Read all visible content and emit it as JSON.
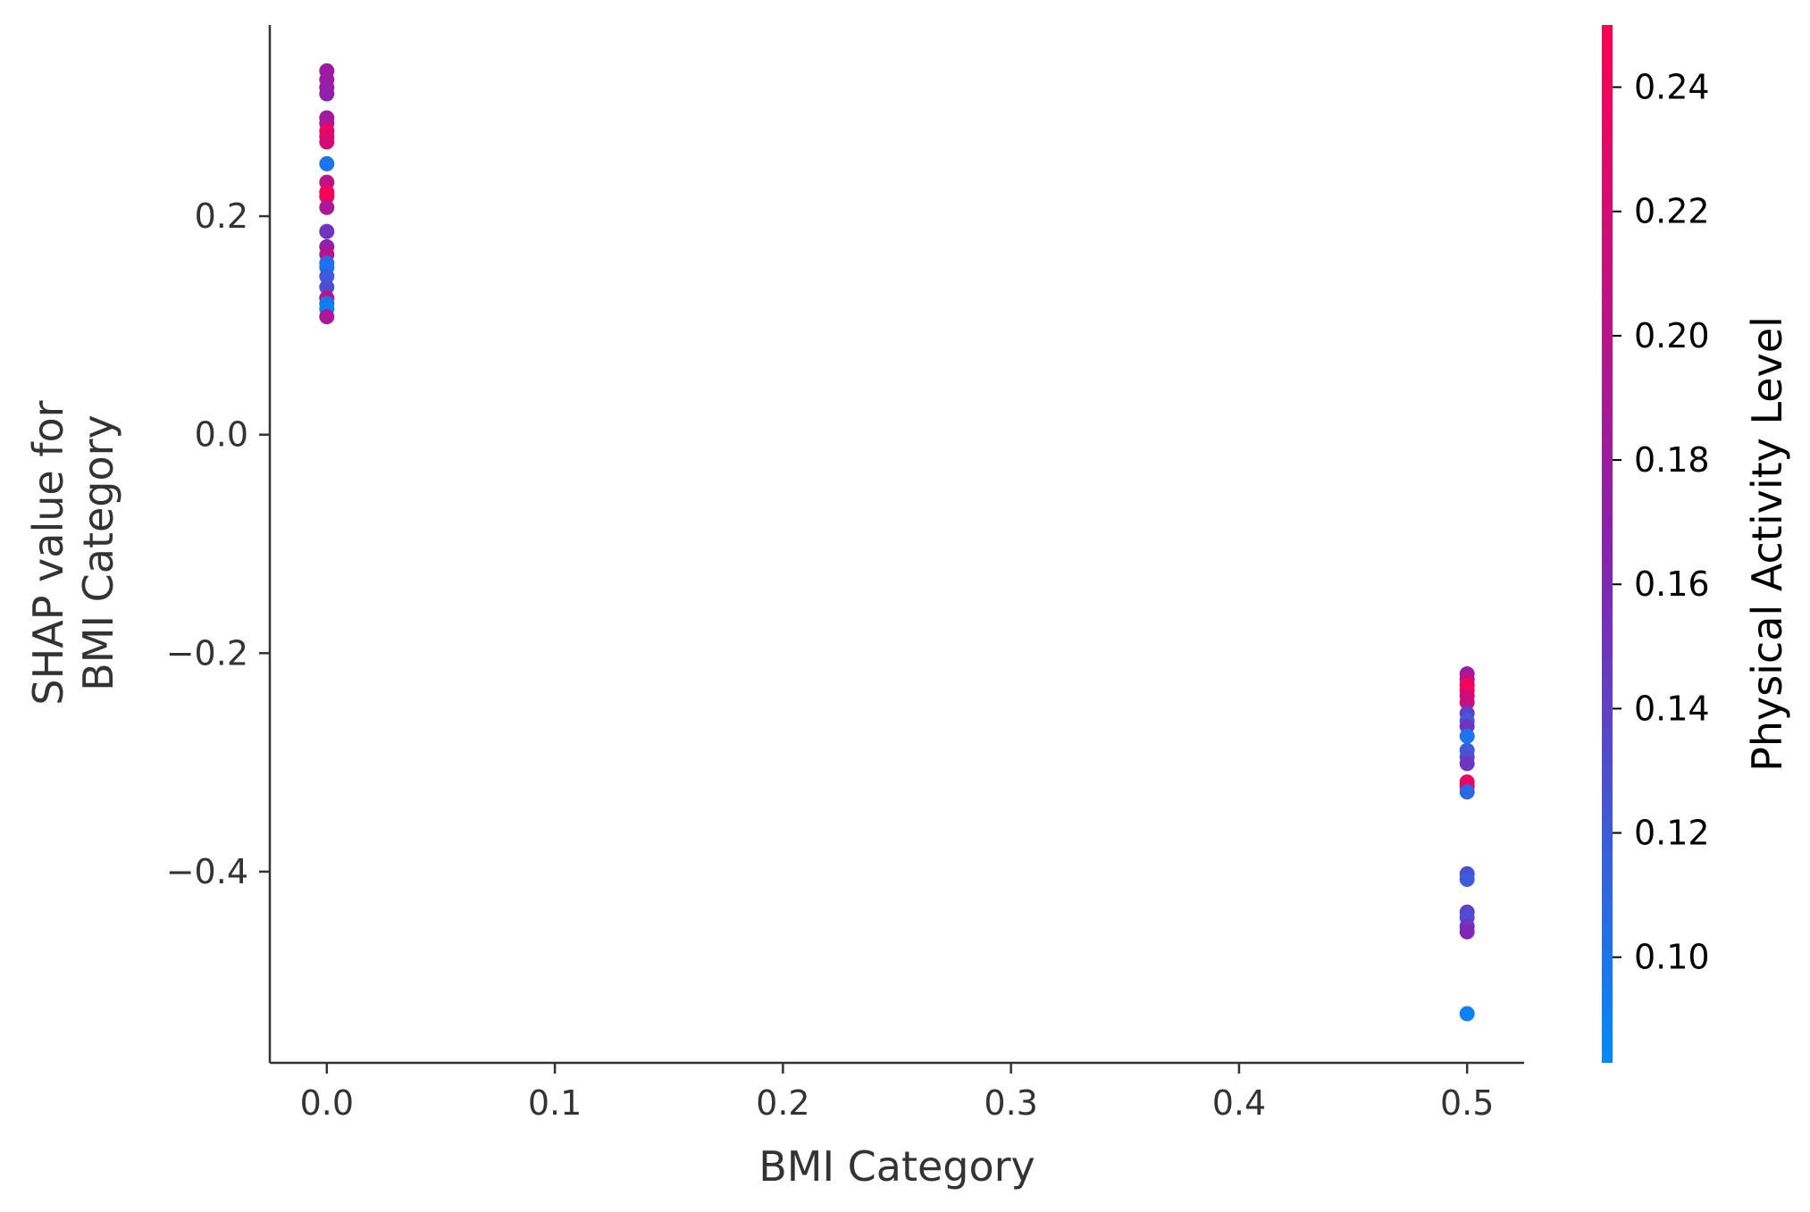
{
  "chart_data": {
    "type": "scatter",
    "xlabel": "BMI Category",
    "ylabel_lines": [
      "SHAP value for",
      "BMI Category"
    ],
    "xlim": [
      -0.025,
      0.525
    ],
    "ylim": [
      -0.575,
      0.375
    ],
    "x_ticks": [
      0.0,
      0.1,
      0.2,
      0.3,
      0.4,
      0.5
    ],
    "x_tick_labels": [
      "0.0",
      "0.1",
      "0.2",
      "0.3",
      "0.4",
      "0.5"
    ],
    "y_ticks": [
      0.2,
      0.0,
      -0.2,
      -0.4
    ],
    "y_tick_labels": [
      "0.2",
      "0.0",
      "−0.2",
      "−0.4"
    ],
    "grid": false,
    "colorbar": {
      "label": "Physical Activity Level",
      "range": [
        0.083,
        0.25
      ],
      "ticks": [
        0.1,
        0.12,
        0.14,
        0.16,
        0.18,
        0.2,
        0.22,
        0.24
      ],
      "tick_labels": [
        "0.10",
        "0.12",
        "0.14",
        "0.16",
        "0.18",
        "0.20",
        "0.22",
        "0.24"
      ],
      "colors": {
        "low": "#008afb",
        "mid": "#8a20b0",
        "high": "#ff0052"
      }
    },
    "points": [
      {
        "x": 0.0,
        "y": 0.333,
        "c": 0.18
      },
      {
        "x": 0.0,
        "y": 0.325,
        "c": 0.18
      },
      {
        "x": 0.0,
        "y": 0.318,
        "c": 0.175
      },
      {
        "x": 0.0,
        "y": 0.312,
        "c": 0.17
      },
      {
        "x": 0.0,
        "y": 0.29,
        "c": 0.18
      },
      {
        "x": 0.0,
        "y": 0.285,
        "c": 0.19
      },
      {
        "x": 0.0,
        "y": 0.278,
        "c": 0.24
      },
      {
        "x": 0.0,
        "y": 0.273,
        "c": 0.23
      },
      {
        "x": 0.0,
        "y": 0.268,
        "c": 0.22
      },
      {
        "x": 0.0,
        "y": 0.248,
        "c": 0.1
      },
      {
        "x": 0.0,
        "y": 0.231,
        "c": 0.2
      },
      {
        "x": 0.0,
        "y": 0.222,
        "c": 0.24
      },
      {
        "x": 0.0,
        "y": 0.218,
        "c": 0.245
      },
      {
        "x": 0.0,
        "y": 0.208,
        "c": 0.19
      },
      {
        "x": 0.0,
        "y": 0.186,
        "c": 0.15
      },
      {
        "x": 0.0,
        "y": 0.172,
        "c": 0.17
      },
      {
        "x": 0.0,
        "y": 0.165,
        "c": 0.2
      },
      {
        "x": 0.0,
        "y": 0.157,
        "c": 0.11
      },
      {
        "x": 0.0,
        "y": 0.153,
        "c": 0.1
      },
      {
        "x": 0.0,
        "y": 0.145,
        "c": 0.12
      },
      {
        "x": 0.0,
        "y": 0.135,
        "c": 0.13
      },
      {
        "x": 0.0,
        "y": 0.125,
        "c": 0.2
      },
      {
        "x": 0.0,
        "y": 0.12,
        "c": 0.1
      },
      {
        "x": 0.0,
        "y": 0.115,
        "c": 0.09
      },
      {
        "x": 0.0,
        "y": 0.108,
        "c": 0.19
      },
      {
        "x": 0.5,
        "y": -0.219,
        "c": 0.18
      },
      {
        "x": 0.5,
        "y": -0.224,
        "c": 0.2
      },
      {
        "x": 0.5,
        "y": -0.229,
        "c": 0.24
      },
      {
        "x": 0.5,
        "y": -0.234,
        "c": 0.245
      },
      {
        "x": 0.5,
        "y": -0.239,
        "c": 0.22
      },
      {
        "x": 0.5,
        "y": -0.245,
        "c": 0.21
      },
      {
        "x": 0.5,
        "y": -0.255,
        "c": 0.14
      },
      {
        "x": 0.5,
        "y": -0.262,
        "c": 0.12
      },
      {
        "x": 0.5,
        "y": -0.267,
        "c": 0.15
      },
      {
        "x": 0.5,
        "y": -0.276,
        "c": 0.1
      },
      {
        "x": 0.5,
        "y": -0.289,
        "c": 0.12
      },
      {
        "x": 0.5,
        "y": -0.295,
        "c": 0.13
      },
      {
        "x": 0.5,
        "y": -0.301,
        "c": 0.15
      },
      {
        "x": 0.5,
        "y": -0.318,
        "c": 0.24
      },
      {
        "x": 0.5,
        "y": -0.322,
        "c": 0.23
      },
      {
        "x": 0.5,
        "y": -0.327,
        "c": 0.11
      },
      {
        "x": 0.5,
        "y": -0.402,
        "c": 0.13
      },
      {
        "x": 0.5,
        "y": -0.407,
        "c": 0.12
      },
      {
        "x": 0.5,
        "y": -0.437,
        "c": 0.14
      },
      {
        "x": 0.5,
        "y": -0.442,
        "c": 0.13
      },
      {
        "x": 0.5,
        "y": -0.45,
        "c": 0.15
      },
      {
        "x": 0.5,
        "y": -0.455,
        "c": 0.16
      },
      {
        "x": 0.5,
        "y": -0.53,
        "c": 0.09
      }
    ]
  }
}
